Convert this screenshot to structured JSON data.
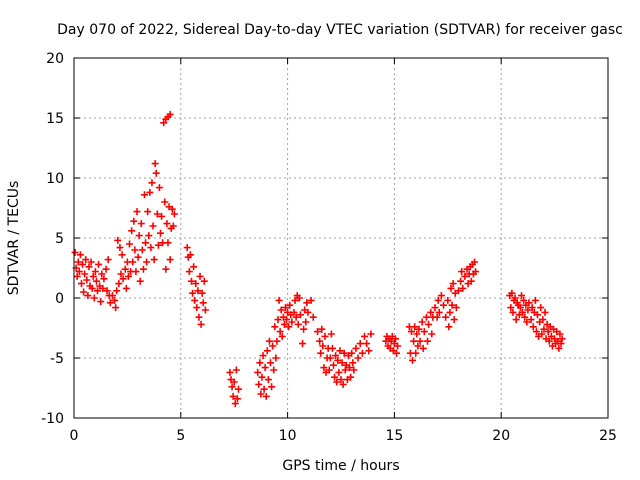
{
  "colors": {
    "series": "#ff0000",
    "grid": "#a0a0a0",
    "axis": "#000000",
    "background": "#ffffff"
  },
  "chart_data": {
    "type": "scatter",
    "title": "Day 070 of 2022, Sidereal Day-to-day VTEC variation (SDTVAR) for receiver gasc",
    "xlabel": "GPS time / hours",
    "ylabel": "SDTVAR / TECUs",
    "xlim": [
      0,
      25
    ],
    "ylim": [
      -10,
      20
    ],
    "xticks": [
      0,
      5,
      10,
      15,
      20,
      25
    ],
    "yticks": [
      -10,
      -5,
      0,
      5,
      10,
      15,
      20
    ],
    "grid": true,
    "marker": "plus",
    "series": [
      {
        "name": "SDTVAR",
        "points": [
          [
            0.05,
            3.8
          ],
          [
            0.1,
            2.5
          ],
          [
            0.15,
            1.8
          ],
          [
            0.2,
            3.0
          ],
          [
            0.25,
            2.2
          ],
          [
            0.3,
            3.6
          ],
          [
            0.35,
            1.2
          ],
          [
            0.4,
            2.8
          ],
          [
            0.45,
            0.5
          ],
          [
            0.5,
            2.0
          ],
          [
            0.55,
            3.2
          ],
          [
            0.6,
            1.5
          ],
          [
            0.65,
            0.2
          ],
          [
            0.7,
            2.6
          ],
          [
            0.75,
            1.0
          ],
          [
            0.8,
            3.0
          ],
          [
            0.85,
            0.8
          ],
          [
            0.9,
            1.8
          ],
          [
            0.95,
            0.0
          ],
          [
            1.0,
            2.2
          ],
          [
            1.05,
            1.4
          ],
          [
            1.1,
            0.6
          ],
          [
            1.15,
            2.8
          ],
          [
            1.2,
            1.0
          ],
          [
            1.25,
            -0.3
          ],
          [
            1.3,
            2.0
          ],
          [
            1.35,
            0.8
          ],
          [
            1.4,
            1.6
          ],
          [
            1.5,
            2.4
          ],
          [
            1.55,
            0.6
          ],
          [
            1.6,
            3.2
          ],
          [
            1.65,
            0.2
          ],
          [
            1.7,
            -0.4
          ],
          [
            1.8,
            0.2
          ],
          [
            1.9,
            -0.2
          ],
          [
            1.95,
            -0.8
          ],
          [
            2.0,
            0.6
          ],
          [
            2.05,
            4.8
          ],
          [
            2.1,
            1.2
          ],
          [
            2.15,
            4.2
          ],
          [
            2.2,
            2.0
          ],
          [
            2.25,
            3.6
          ],
          [
            2.3,
            1.6
          ],
          [
            2.4,
            2.4
          ],
          [
            2.45,
            0.8
          ],
          [
            2.5,
            3.0
          ],
          [
            2.55,
            1.8
          ],
          [
            2.6,
            4.5
          ],
          [
            2.65,
            2.2
          ],
          [
            2.7,
            5.6
          ],
          [
            2.75,
            3.0
          ],
          [
            2.8,
            6.4
          ],
          [
            2.85,
            4.0
          ],
          [
            2.9,
            2.2
          ],
          [
            2.95,
            7.2
          ],
          [
            3.0,
            3.4
          ],
          [
            3.05,
            5.2
          ],
          [
            3.1,
            1.4
          ],
          [
            3.15,
            6.2
          ],
          [
            3.2,
            4.0
          ],
          [
            3.25,
            2.4
          ],
          [
            3.3,
            8.6
          ],
          [
            3.35,
            4.6
          ],
          [
            3.4,
            3.0
          ],
          [
            3.45,
            7.2
          ],
          [
            3.5,
            5.2
          ],
          [
            3.55,
            8.8
          ],
          [
            3.6,
            4.2
          ],
          [
            3.65,
            9.6
          ],
          [
            3.7,
            6.0
          ],
          [
            3.75,
            3.2
          ],
          [
            3.8,
            11.2
          ],
          [
            3.85,
            10.4
          ],
          [
            3.9,
            7.0
          ],
          [
            3.95,
            4.4
          ],
          [
            4.0,
            9.2
          ],
          [
            4.05,
            5.4
          ],
          [
            4.1,
            6.8
          ],
          [
            4.15,
            4.6
          ],
          [
            4.2,
            14.6
          ],
          [
            4.25,
            8.0
          ],
          [
            4.3,
            14.9
          ],
          [
            4.35,
            6.2
          ],
          [
            4.4,
            15.1
          ],
          [
            4.45,
            7.6
          ],
          [
            4.5,
            15.3
          ],
          [
            4.55,
            5.8
          ],
          [
            4.6,
            7.4
          ],
          [
            4.65,
            6.0
          ],
          [
            4.7,
            7.0
          ],
          [
            4.5,
            3.2
          ],
          [
            4.4,
            4.6
          ],
          [
            4.3,
            2.4
          ],
          [
            5.3,
            4.2
          ],
          [
            5.35,
            3.4
          ],
          [
            5.4,
            2.2
          ],
          [
            5.45,
            3.6
          ],
          [
            5.5,
            1.4
          ],
          [
            5.55,
            0.4
          ],
          [
            5.6,
            2.6
          ],
          [
            5.65,
            -0.2
          ],
          [
            5.7,
            1.2
          ],
          [
            5.75,
            -0.8
          ],
          [
            5.8,
            0.6
          ],
          [
            5.85,
            -1.6
          ],
          [
            5.9,
            1.8
          ],
          [
            5.95,
            -2.2
          ],
          [
            6.0,
            0.4
          ],
          [
            6.05,
            -0.4
          ],
          [
            6.1,
            1.4
          ],
          [
            6.15,
            -1.0
          ],
          [
            7.3,
            -6.2
          ],
          [
            7.35,
            -6.8
          ],
          [
            7.4,
            -7.4
          ],
          [
            7.45,
            -8.2
          ],
          [
            7.5,
            -7.0
          ],
          [
            7.55,
            -8.8
          ],
          [
            7.6,
            -6.0
          ],
          [
            7.65,
            -8.4
          ],
          [
            7.7,
            -7.6
          ],
          [
            8.6,
            -6.2
          ],
          [
            8.65,
            -7.2
          ],
          [
            8.7,
            -5.4
          ],
          [
            8.75,
            -8.0
          ],
          [
            8.8,
            -6.6
          ],
          [
            8.85,
            -4.8
          ],
          [
            8.9,
            -7.6
          ],
          [
            8.95,
            -5.8
          ],
          [
            9.0,
            -8.2
          ],
          [
            9.05,
            -4.4
          ],
          [
            9.1,
            -6.8
          ],
          [
            9.15,
            -3.6
          ],
          [
            9.2,
            -5.4
          ],
          [
            9.25,
            -7.4
          ],
          [
            9.3,
            -4.0
          ],
          [
            9.35,
            -6.0
          ],
          [
            9.4,
            -2.4
          ],
          [
            9.45,
            -5.0
          ],
          [
            9.5,
            -3.6
          ],
          [
            9.55,
            -1.8
          ],
          [
            9.6,
            -0.2
          ],
          [
            9.65,
            -2.8
          ],
          [
            9.7,
            -1.0
          ],
          [
            9.75,
            -3.2
          ],
          [
            9.8,
            -1.6
          ],
          [
            9.85,
            -2.2
          ],
          [
            9.9,
            -0.8
          ],
          [
            9.95,
            -1.8
          ],
          [
            10.0,
            -1.2
          ],
          [
            10.05,
            -2.4
          ],
          [
            10.1,
            -0.6
          ],
          [
            10.15,
            -1.4
          ],
          [
            10.2,
            -2.0
          ],
          [
            10.3,
            -1.2
          ],
          [
            10.35,
            -0.2
          ],
          [
            10.4,
            -1.6
          ],
          [
            10.45,
            0.2
          ],
          [
            10.5,
            -2.2
          ],
          [
            10.55,
            0.0
          ],
          [
            10.6,
            -1.4
          ],
          [
            10.7,
            -3.8
          ],
          [
            10.75,
            -2.6
          ],
          [
            10.8,
            -1.0
          ],
          [
            10.85,
            -2.0
          ],
          [
            10.9,
            -0.4
          ],
          [
            10.95,
            -1.2
          ],
          [
            11.1,
            -0.2
          ],
          [
            11.2,
            -1.6
          ],
          [
            11.4,
            -2.8
          ],
          [
            11.5,
            -3.6
          ],
          [
            11.55,
            -4.6
          ],
          [
            11.6,
            -2.6
          ],
          [
            11.65,
            -4.0
          ],
          [
            11.7,
            -5.8
          ],
          [
            11.75,
            -3.2
          ],
          [
            11.8,
            -6.2
          ],
          [
            11.85,
            -5.0
          ],
          [
            11.9,
            -4.2
          ],
          [
            11.95,
            -6.0
          ],
          [
            12.0,
            -5.0
          ],
          [
            12.05,
            -3.0
          ],
          [
            12.1,
            -4.2
          ],
          [
            12.15,
            -5.6
          ],
          [
            12.2,
            -6.6
          ],
          [
            12.25,
            -4.8
          ],
          [
            12.3,
            -7.0
          ],
          [
            12.35,
            -5.2
          ],
          [
            12.4,
            -6.2
          ],
          [
            12.45,
            -4.4
          ],
          [
            12.5,
            -6.8
          ],
          [
            12.55,
            -5.4
          ],
          [
            12.6,
            -7.2
          ],
          [
            12.65,
            -4.6
          ],
          [
            12.7,
            -6.0
          ],
          [
            12.75,
            -5.6
          ],
          [
            12.8,
            -6.8
          ],
          [
            12.85,
            -4.8
          ],
          [
            12.9,
            -5.8
          ],
          [
            12.95,
            -6.6
          ],
          [
            13.0,
            -4.6
          ],
          [
            13.05,
            -5.4
          ],
          [
            13.1,
            -6.0
          ],
          [
            13.2,
            -4.2
          ],
          [
            13.3,
            -5.0
          ],
          [
            13.4,
            -3.8
          ],
          [
            13.5,
            -4.6
          ],
          [
            13.6,
            -3.2
          ],
          [
            13.7,
            -3.8
          ],
          [
            13.8,
            -4.4
          ],
          [
            13.9,
            -3.0
          ],
          [
            14.6,
            -3.6
          ],
          [
            14.65,
            -3.2
          ],
          [
            14.7,
            -4.0
          ],
          [
            14.75,
            -3.4
          ],
          [
            14.8,
            -4.2
          ],
          [
            14.85,
            -3.6
          ],
          [
            14.9,
            -3.2
          ],
          [
            14.95,
            -4.4
          ],
          [
            15.0,
            -3.8
          ],
          [
            15.05,
            -3.4
          ],
          [
            15.1,
            -4.6
          ],
          [
            15.15,
            -4.0
          ],
          [
            15.7,
            -2.4
          ],
          [
            15.75,
            -4.6
          ],
          [
            15.8,
            -2.8
          ],
          [
            15.85,
            -5.2
          ],
          [
            15.9,
            -3.6
          ],
          [
            15.95,
            -2.4
          ],
          [
            16.0,
            -4.6
          ],
          [
            16.05,
            -3.0
          ],
          [
            16.1,
            -4.0
          ],
          [
            16.15,
            -2.6
          ],
          [
            16.2,
            -3.6
          ],
          [
            16.3,
            -2.0
          ],
          [
            16.35,
            -4.2
          ],
          [
            16.4,
            -2.8
          ],
          [
            16.5,
            -1.6
          ],
          [
            16.55,
            -3.6
          ],
          [
            16.6,
            -2.2
          ],
          [
            16.7,
            -1.2
          ],
          [
            16.75,
            -3.0
          ],
          [
            16.8,
            -1.6
          ],
          [
            16.9,
            -0.8
          ],
          [
            17.0,
            -1.6
          ],
          [
            17.05,
            -0.2
          ],
          [
            17.1,
            -1.2
          ],
          [
            17.2,
            0.2
          ],
          [
            17.3,
            -0.6
          ],
          [
            17.4,
            -1.6
          ],
          [
            17.5,
            -0.2
          ],
          [
            17.55,
            -2.4
          ],
          [
            17.6,
            -1.2
          ],
          [
            17.65,
            0.8
          ],
          [
            17.7,
            -0.6
          ],
          [
            17.75,
            1.2
          ],
          [
            17.8,
            -1.8
          ],
          [
            17.85,
            0.4
          ],
          [
            17.9,
            -0.8
          ],
          [
            18.0,
            0.6
          ],
          [
            18.1,
            1.4
          ],
          [
            18.15,
            2.2
          ],
          [
            18.2,
            0.8
          ],
          [
            18.3,
            1.8
          ],
          [
            18.4,
            2.4
          ],
          [
            18.45,
            1.2
          ],
          [
            18.5,
            2.0
          ],
          [
            18.55,
            2.6
          ],
          [
            18.6,
            1.4
          ],
          [
            18.65,
            2.8
          ],
          [
            18.7,
            2.0
          ],
          [
            18.75,
            3.0
          ],
          [
            18.8,
            2.2
          ],
          [
            20.4,
            0.2
          ],
          [
            20.45,
            -0.8
          ],
          [
            20.5,
            0.4
          ],
          [
            20.55,
            -1.2
          ],
          [
            20.6,
            -0.2
          ],
          [
            20.65,
            0.0
          ],
          [
            20.7,
            -1.8
          ],
          [
            20.75,
            -0.4
          ],
          [
            20.8,
            -0.6
          ],
          [
            20.85,
            -1.4
          ],
          [
            20.9,
            -0.8
          ],
          [
            20.95,
            0.2
          ],
          [
            21.0,
            -1.2
          ],
          [
            21.05,
            -0.2
          ],
          [
            21.1,
            -1.6
          ],
          [
            21.15,
            -0.6
          ],
          [
            21.2,
            -2.0
          ],
          [
            21.25,
            -1.0
          ],
          [
            21.3,
            -0.4
          ],
          [
            21.4,
            -1.8
          ],
          [
            21.45,
            -0.8
          ],
          [
            21.5,
            -2.4
          ],
          [
            21.55,
            -1.2
          ],
          [
            21.6,
            -0.2
          ],
          [
            21.65,
            -2.8
          ],
          [
            21.7,
            -1.4
          ],
          [
            21.75,
            -3.2
          ],
          [
            21.8,
            -2.0
          ],
          [
            21.85,
            -0.8
          ],
          [
            21.9,
            -3.0
          ],
          [
            21.95,
            -1.8
          ],
          [
            22.0,
            -2.6
          ],
          [
            22.05,
            -1.2
          ],
          [
            22.1,
            -3.4
          ],
          [
            22.15,
            -2.2
          ],
          [
            22.2,
            -2.8
          ],
          [
            22.25,
            -3.6
          ],
          [
            22.3,
            -2.4
          ],
          [
            22.35,
            -3.2
          ],
          [
            22.4,
            -4.0
          ],
          [
            22.45,
            -2.6
          ],
          [
            22.5,
            -3.4
          ],
          [
            22.55,
            -3.8
          ],
          [
            22.6,
            -2.8
          ],
          [
            22.65,
            -3.6
          ],
          [
            22.7,
            -4.2
          ],
          [
            22.75,
            -3.0
          ],
          [
            22.8,
            -3.8
          ],
          [
            22.85,
            -3.4
          ]
        ]
      }
    ]
  }
}
